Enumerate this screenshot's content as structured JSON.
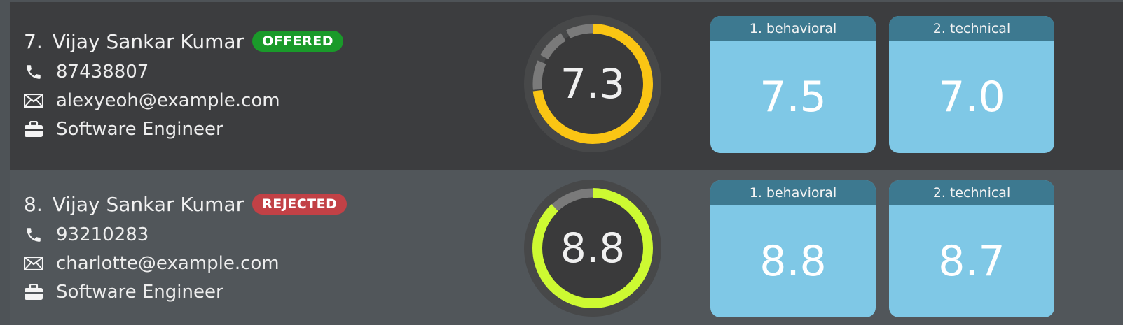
{
  "candidates": [
    {
      "index": "7.",
      "name": "Vijay Sankar Kumar",
      "status": "OFFERED",
      "status_color": "#1a9a2a",
      "phone": "87438807",
      "email": "alexyeoh@example.com",
      "role": "Software Engineer",
      "overall_score": "7.3",
      "overall_fraction": 0.73,
      "ring_color": "#fac514",
      "rounds": [
        {
          "label": "1. behavioral",
          "score": "7.5"
        },
        {
          "label": "2. technical",
          "score": "7.0"
        }
      ]
    },
    {
      "index": "8.",
      "name": "Vijay Sankar Kumar",
      "status": "REJECTED",
      "status_color": "#c24146",
      "phone": "93210283",
      "email": "charlotte@example.com",
      "role": "Software Engineer",
      "overall_score": "8.8",
      "overall_fraction": 0.88,
      "ring_color": "#cdfa32",
      "rounds": [
        {
          "label": "1. behavioral",
          "score": "8.8"
        },
        {
          "label": "2. technical",
          "score": "8.7"
        }
      ]
    }
  ],
  "icons": {
    "phone": "phone-icon",
    "email": "mail-icon",
    "role": "briefcase-icon"
  },
  "colors": {
    "card_header": "#3d7990",
    "card_body": "#7fc8e6",
    "ring_track": "#7a7a7a"
  }
}
